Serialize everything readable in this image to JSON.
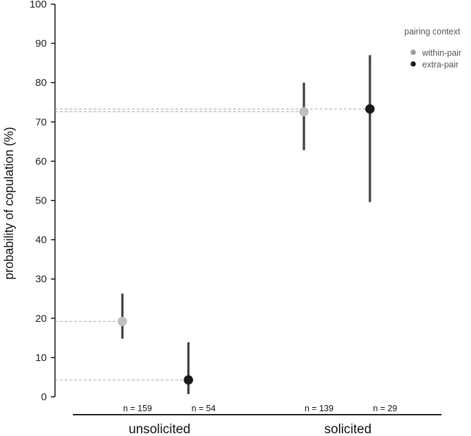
{
  "chart_data": {
    "type": "scatter",
    "title": "",
    "ylabel": "probability of copulation (%)",
    "xlabel": "",
    "ylim": [
      0,
      100
    ],
    "yticks": [
      0,
      10,
      20,
      30,
      40,
      50,
      60,
      70,
      80,
      90,
      100
    ],
    "categories": [
      "unsolicited",
      "solicited"
    ],
    "grid": false,
    "legend": {
      "title": "pairing context",
      "placement": "top-right",
      "entries": [
        {
          "name": "within-pair",
          "color": "#bfbfbf"
        },
        {
          "name": "extra-pair",
          "color": "#1a1a1a"
        }
      ]
    },
    "series": [
      {
        "name": "within-pair",
        "color": "#bfbfbf",
        "points": [
          {
            "category": "unsolicited",
            "y": 19.2,
            "lower": 14.8,
            "upper": 26.3,
            "n_label": "n = 159"
          },
          {
            "category": "solicited",
            "y": 72.6,
            "lower": 62.8,
            "upper": 80.0,
            "n_label": "n = 139"
          }
        ]
      },
      {
        "name": "extra-pair",
        "color": "#1a1a1a",
        "points": [
          {
            "category": "unsolicited",
            "y": 4.3,
            "lower": 0.7,
            "upper": 13.9,
            "n_label": "n = 54"
          },
          {
            "category": "solicited",
            "y": 73.3,
            "lower": 49.6,
            "upper": 87.0,
            "n_label": "n = 29"
          }
        ]
      }
    ],
    "colors": {
      "error_bar": "#3a3a3a",
      "reference_line": "#a8a8a8",
      "axis": "#000000"
    }
  }
}
